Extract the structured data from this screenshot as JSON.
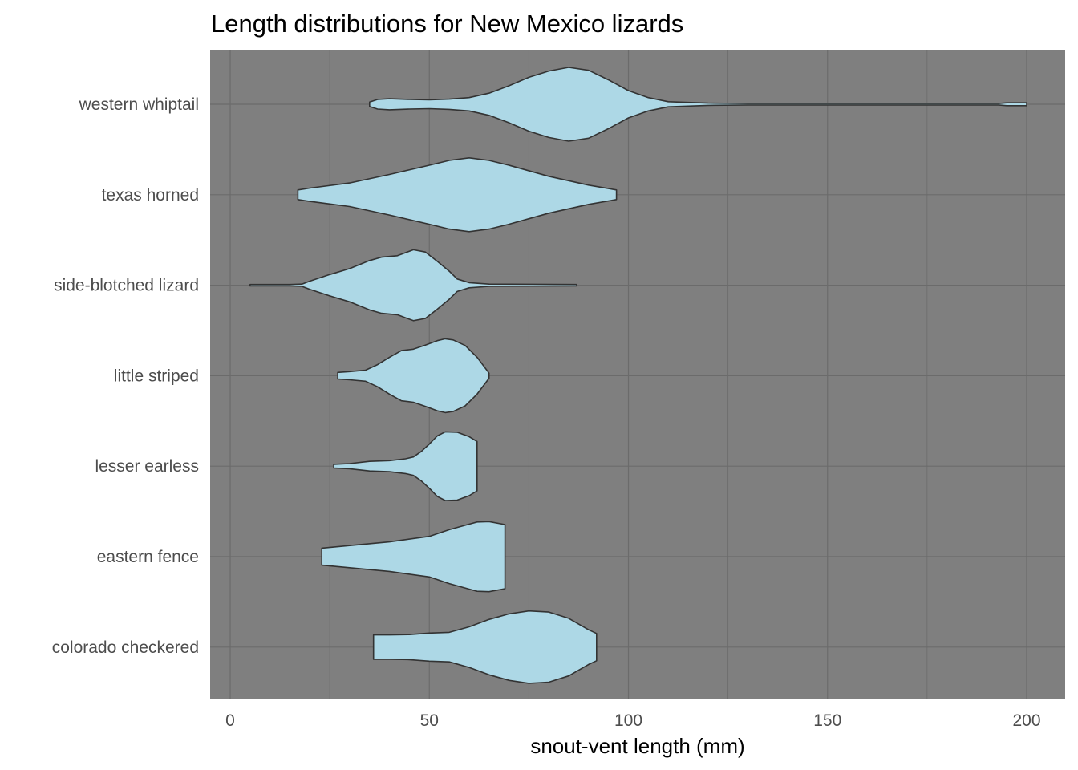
{
  "chart_data": {
    "type": "violin",
    "orientation": "horizontal",
    "title": "Length distributions for New Mexico lizards",
    "xlabel": "snout-vent length (mm)",
    "ylabel": "",
    "xlim": [
      -5,
      209
    ],
    "x_ticks": [
      0,
      50,
      100,
      150,
      200
    ],
    "x_tick_labels": [
      "0",
      "50",
      "100",
      "150",
      "200"
    ],
    "grid": true,
    "panel_background": "#7f7f7f",
    "grid_color": "#6b6b6b",
    "fill_color": "#add8e6",
    "outline_color": "#333333",
    "categories": [
      "western whiptail",
      "texas horned",
      "side-blotched lizard",
      "little striped",
      "lesser earless",
      "eastern fence",
      "colorado checkered"
    ],
    "violins": [
      {
        "name": "western whiptail",
        "min": 35,
        "max": 200,
        "profile": [
          [
            35,
            0.06
          ],
          [
            37,
            0.13
          ],
          [
            40,
            0.15
          ],
          [
            45,
            0.13
          ],
          [
            50,
            0.12
          ],
          [
            55,
            0.14
          ],
          [
            60,
            0.18
          ],
          [
            65,
            0.3
          ],
          [
            70,
            0.5
          ],
          [
            75,
            0.73
          ],
          [
            80,
            0.9
          ],
          [
            85,
            1.0
          ],
          [
            90,
            0.92
          ],
          [
            95,
            0.66
          ],
          [
            100,
            0.37
          ],
          [
            105,
            0.18
          ],
          [
            110,
            0.07
          ],
          [
            120,
            0.03
          ],
          [
            130,
            0.02
          ],
          [
            150,
            0.02
          ],
          [
            180,
            0.02
          ],
          [
            193,
            0.02
          ],
          [
            195,
            0.04
          ],
          [
            200,
            0.04
          ]
        ]
      },
      {
        "name": "texas horned",
        "min": 17,
        "max": 97,
        "profile": [
          [
            17,
            0.13
          ],
          [
            20,
            0.18
          ],
          [
            30,
            0.32
          ],
          [
            40,
            0.55
          ],
          [
            50,
            0.8
          ],
          [
            55,
            0.93
          ],
          [
            60,
            1.0
          ],
          [
            65,
            0.93
          ],
          [
            70,
            0.8
          ],
          [
            80,
            0.5
          ],
          [
            90,
            0.26
          ],
          [
            97,
            0.13
          ]
        ]
      },
      {
        "name": "side-blotched lizard",
        "min": 5,
        "max": 87,
        "profile": [
          [
            5,
            0.02
          ],
          [
            10,
            0.02
          ],
          [
            15,
            0.02
          ],
          [
            18,
            0.03
          ],
          [
            20,
            0.11
          ],
          [
            25,
            0.29
          ],
          [
            30,
            0.45
          ],
          [
            35,
            0.67
          ],
          [
            38,
            0.76
          ],
          [
            42,
            0.8
          ],
          [
            46,
            0.96
          ],
          [
            49,
            0.9
          ],
          [
            52,
            0.65
          ],
          [
            55,
            0.38
          ],
          [
            57,
            0.17
          ],
          [
            60,
            0.07
          ],
          [
            65,
            0.03
          ],
          [
            87,
            0.02
          ]
        ]
      },
      {
        "name": "little striped",
        "min": 27,
        "max": 65,
        "profile": [
          [
            27,
            0.09
          ],
          [
            30,
            0.11
          ],
          [
            34,
            0.15
          ],
          [
            37,
            0.3
          ],
          [
            40,
            0.5
          ],
          [
            43,
            0.68
          ],
          [
            46,
            0.72
          ],
          [
            49,
            0.83
          ],
          [
            52,
            0.95
          ],
          [
            54,
            1.0
          ],
          [
            56,
            0.97
          ],
          [
            59,
            0.82
          ],
          [
            62,
            0.5
          ],
          [
            65,
            0.07
          ]
        ]
      },
      {
        "name": "lesser earless",
        "min": 26,
        "max": 62,
        "profile": [
          [
            26,
            0.05
          ],
          [
            30,
            0.07
          ],
          [
            35,
            0.13
          ],
          [
            40,
            0.15
          ],
          [
            44,
            0.2
          ],
          [
            46,
            0.25
          ],
          [
            48,
            0.4
          ],
          [
            50,
            0.6
          ],
          [
            52,
            0.82
          ],
          [
            54,
            0.93
          ],
          [
            57,
            0.92
          ],
          [
            60,
            0.8
          ],
          [
            62,
            0.67
          ]
        ]
      },
      {
        "name": "eastern fence",
        "min": 23,
        "max": 69,
        "profile": [
          [
            23,
            0.23
          ],
          [
            30,
            0.3
          ],
          [
            40,
            0.4
          ],
          [
            50,
            0.55
          ],
          [
            55,
            0.73
          ],
          [
            60,
            0.88
          ],
          [
            62,
            0.94
          ],
          [
            65,
            0.95
          ],
          [
            69,
            0.87
          ]
        ]
      },
      {
        "name": "colorado checkered",
        "min": 36,
        "max": 92,
        "profile": [
          [
            36,
            0.33
          ],
          [
            40,
            0.33
          ],
          [
            45,
            0.34
          ],
          [
            50,
            0.38
          ],
          [
            55,
            0.4
          ],
          [
            60,
            0.55
          ],
          [
            65,
            0.75
          ],
          [
            70,
            0.9
          ],
          [
            75,
            0.98
          ],
          [
            80,
            0.95
          ],
          [
            85,
            0.78
          ],
          [
            90,
            0.47
          ],
          [
            92,
            0.37
          ]
        ]
      }
    ]
  }
}
